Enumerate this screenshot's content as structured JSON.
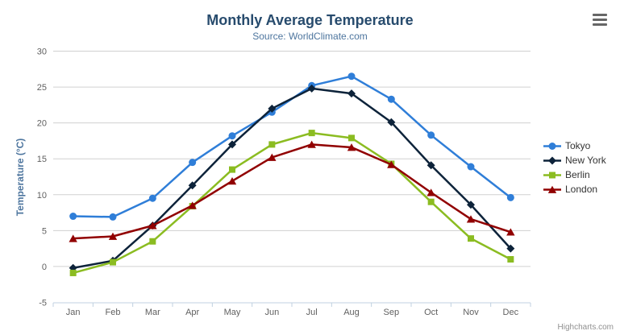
{
  "header": {
    "title": "Monthly Average Temperature",
    "subtitle": "Source: WorldClimate.com"
  },
  "credits": {
    "text": "Highcharts.com"
  },
  "icons": {
    "context_menu": "hamburger-icon"
  },
  "colors": {
    "title": "#274b6d",
    "subtitle": "#4d759e",
    "axis_title": "#4d759e",
    "axis_label": "#606060",
    "grid_line": "#d0d0d0",
    "axis_line": "#c0d0e0",
    "legend_text": "#333333",
    "credits_text": "#909090"
  },
  "chart_data": {
    "type": "line",
    "title": "Monthly Average Temperature",
    "subtitle": "Source: WorldClimate.com",
    "xlabel": "",
    "ylabel": "Temperature (°C)",
    "ylim": [
      -5,
      30
    ],
    "ytick_interval": 5,
    "grid": true,
    "legend_position": "right",
    "categories": [
      "Jan",
      "Feb",
      "Mar",
      "Apr",
      "May",
      "Jun",
      "Jul",
      "Aug",
      "Sep",
      "Oct",
      "Nov",
      "Dec"
    ],
    "series": [
      {
        "name": "Tokyo",
        "color": "#2f7ed8",
        "marker": "circle",
        "values": [
          7.0,
          6.9,
          9.5,
          14.5,
          18.2,
          21.5,
          25.2,
          26.5,
          23.3,
          18.3,
          13.9,
          9.6
        ]
      },
      {
        "name": "New York",
        "color": "#0d233a",
        "marker": "diamond",
        "values": [
          -0.2,
          0.8,
          5.7,
          11.3,
          17.0,
          22.0,
          24.8,
          24.1,
          20.1,
          14.1,
          8.6,
          2.5
        ]
      },
      {
        "name": "Berlin",
        "color": "#8bbc21",
        "marker": "square",
        "values": [
          -0.9,
          0.6,
          3.5,
          8.4,
          13.5,
          17.0,
          18.6,
          17.9,
          14.3,
          9.0,
          3.9,
          1.0
        ]
      },
      {
        "name": "London",
        "color": "#910000",
        "marker": "triangle",
        "values": [
          3.9,
          4.2,
          5.7,
          8.5,
          11.9,
          15.2,
          17.0,
          16.6,
          14.2,
          10.3,
          6.6,
          4.8
        ]
      }
    ]
  }
}
